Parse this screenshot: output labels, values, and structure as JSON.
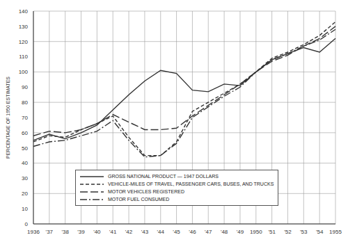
{
  "chart_data": {
    "type": "line",
    "ylabel": "PERCENTAGE OF 1950 ESTIMATES",
    "categories": [
      "1936",
      "'37",
      "'38",
      "'39",
      "'40",
      "'41",
      "'42",
      "'43",
      "'44",
      "'45",
      "'46",
      "'47",
      "'48",
      "'49",
      "1950",
      "'51",
      "'52",
      "'53",
      "'54",
      "1955"
    ],
    "series": [
      {
        "name": "GROSS NATIONAL PRODUCT — 1947 DOLLARS",
        "color": "#333333",
        "line_style": "solid",
        "values": [
          55,
          59,
          56,
          60,
          65,
          75,
          85,
          94,
          101,
          99,
          88,
          87,
          92,
          91,
          100,
          108,
          112,
          116,
          113,
          122
        ]
      },
      {
        "name": "VEHICLE-MILES OF TRAVEL, PASSENGER CARS, BUSES, AND TRUCKS",
        "color": "#333333",
        "line_style": "dashed",
        "values": [
          54,
          58,
          57,
          62,
          66,
          71,
          57,
          45,
          45,
          54,
          74,
          80,
          86,
          92,
          100,
          109,
          113,
          118,
          124,
          133
        ]
      },
      {
        "name": "MOTOR VEHICLES REGISTERED",
        "color": "#333333",
        "line_style": "long_dashed",
        "values": [
          58,
          61,
          60,
          62,
          66,
          72,
          67,
          62,
          62,
          63,
          71,
          78,
          85,
          92,
          100,
          107,
          111,
          117,
          122,
          130
        ]
      },
      {
        "name": "MOTOR FUEL CONSUMED",
        "color": "#333333",
        "line_style": "dash_dot",
        "values": [
          51,
          54,
          55,
          58,
          61,
          68,
          55,
          44,
          45,
          53,
          70,
          77,
          84,
          90,
          100,
          108,
          112,
          117,
          121,
          128
        ]
      }
    ],
    "ylim": [
      0,
      140
    ],
    "yticks": [
      0,
      10,
      20,
      30,
      40,
      50,
      60,
      70,
      80,
      90,
      100,
      110,
      120,
      130,
      140
    ],
    "grid": true,
    "legend": "bottom"
  }
}
